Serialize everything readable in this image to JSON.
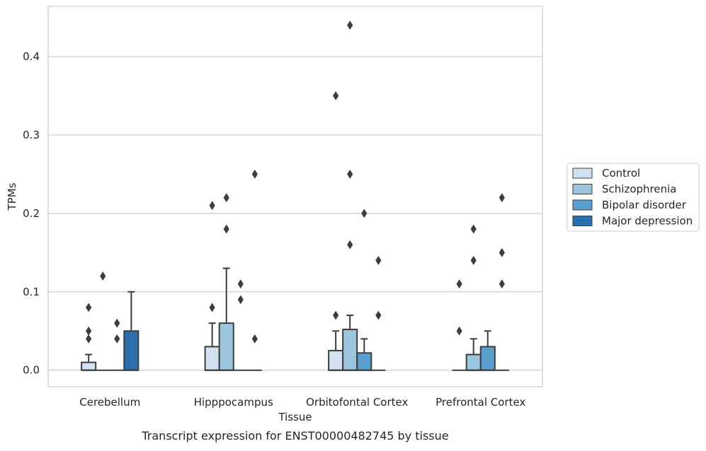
{
  "chart_data": {
    "type": "box",
    "title": "",
    "caption": "Transcript expression for ENST00000482745 by tissue",
    "xlabel": "Tissue",
    "ylabel": "TPMs",
    "ylim": [
      -0.021,
      0.464
    ],
    "yticks": [
      "0.0",
      "0.1",
      "0.2",
      "0.3",
      "0.4"
    ],
    "ytick_values": [
      0.0,
      0.1,
      0.2,
      0.3,
      0.4
    ],
    "grid": "horizontal",
    "legend_position": "right",
    "categories": [
      "Cerebellum",
      "Hipppocampus",
      "Orbitofontal Cortex",
      "Prefrontal Cortex"
    ],
    "series": [
      {
        "name": "Control",
        "color": "#d1e1f1",
        "boxes": [
          {
            "q1": 0.0,
            "median": 0.0,
            "q3": 0.01,
            "whisker_low": 0.0,
            "whisker_high": 0.02,
            "outliers": [
              0.04,
              0.05,
              0.08
            ]
          },
          {
            "q1": 0.0,
            "median": 0.0,
            "q3": 0.03,
            "whisker_low": 0.0,
            "whisker_high": 0.06,
            "outliers": [
              0.08,
              0.21
            ]
          },
          {
            "q1": 0.0,
            "median": 0.0,
            "q3": 0.025,
            "whisker_low": 0.0,
            "whisker_high": 0.05,
            "outliers": [
              0.07,
              0.35
            ]
          },
          {
            "q1": 0.0,
            "median": 0.0,
            "q3": 0.0,
            "whisker_low": 0.0,
            "whisker_high": 0.0,
            "outliers": [
              0.05,
              0.11
            ]
          }
        ]
      },
      {
        "name": "Schizophrenia",
        "color": "#9cc5de",
        "boxes": [
          {
            "q1": 0.0,
            "median": 0.0,
            "q3": 0.0,
            "whisker_low": 0.0,
            "whisker_high": 0.0,
            "outliers": [
              0.12
            ]
          },
          {
            "q1": 0.0,
            "median": 0.0,
            "q3": 0.06,
            "whisker_low": 0.0,
            "whisker_high": 0.13,
            "outliers": [
              0.18,
              0.22
            ]
          },
          {
            "q1": 0.0,
            "median": 0.0,
            "q3": 0.052,
            "whisker_low": 0.0,
            "whisker_high": 0.07,
            "outliers": [
              0.16,
              0.25,
              0.44
            ]
          },
          {
            "q1": 0.0,
            "median": 0.0,
            "q3": 0.02,
            "whisker_low": 0.0,
            "whisker_high": 0.04,
            "outliers": [
              0.14,
              0.18
            ]
          }
        ]
      },
      {
        "name": "Bipolar disorder",
        "color": "#5a9fcd",
        "boxes": [
          {
            "q1": 0.0,
            "median": 0.0,
            "q3": 0.0,
            "whisker_low": 0.0,
            "whisker_high": 0.0,
            "outliers": [
              0.04,
              0.06
            ]
          },
          {
            "q1": 0.0,
            "median": 0.0,
            "q3": 0.0,
            "whisker_low": 0.0,
            "whisker_high": 0.0,
            "outliers": [
              0.09,
              0.11
            ]
          },
          {
            "q1": 0.0,
            "median": 0.0,
            "q3": 0.022,
            "whisker_low": 0.0,
            "whisker_high": 0.04,
            "outliers": [
              0.2
            ]
          },
          {
            "q1": 0.0,
            "median": 0.0,
            "q3": 0.03,
            "whisker_low": 0.0,
            "whisker_high": 0.05,
            "outliers": []
          }
        ]
      },
      {
        "name": "Major depression",
        "color": "#2c6eac",
        "boxes": [
          {
            "q1": 0.0,
            "median": 0.0,
            "q3": 0.05,
            "whisker_low": 0.0,
            "whisker_high": 0.1,
            "outliers": []
          },
          {
            "q1": 0.0,
            "median": 0.0,
            "q3": 0.0,
            "whisker_low": 0.0,
            "whisker_high": 0.0,
            "outliers": [
              0.04,
              0.25
            ]
          },
          {
            "q1": 0.0,
            "median": 0.0,
            "q3": 0.0,
            "whisker_low": 0.0,
            "whisker_high": 0.0,
            "outliers": [
              0.07,
              0.14
            ]
          },
          {
            "q1": 0.0,
            "median": 0.0,
            "q3": 0.0,
            "whisker_low": 0.0,
            "whisker_high": 0.0,
            "outliers": [
              0.11,
              0.15,
              0.22
            ]
          }
        ]
      }
    ],
    "colors": {
      "grid": "#cccccc",
      "frame": "#cccccc",
      "edge": "#3d3d3d",
      "background": "#ffffff"
    }
  }
}
